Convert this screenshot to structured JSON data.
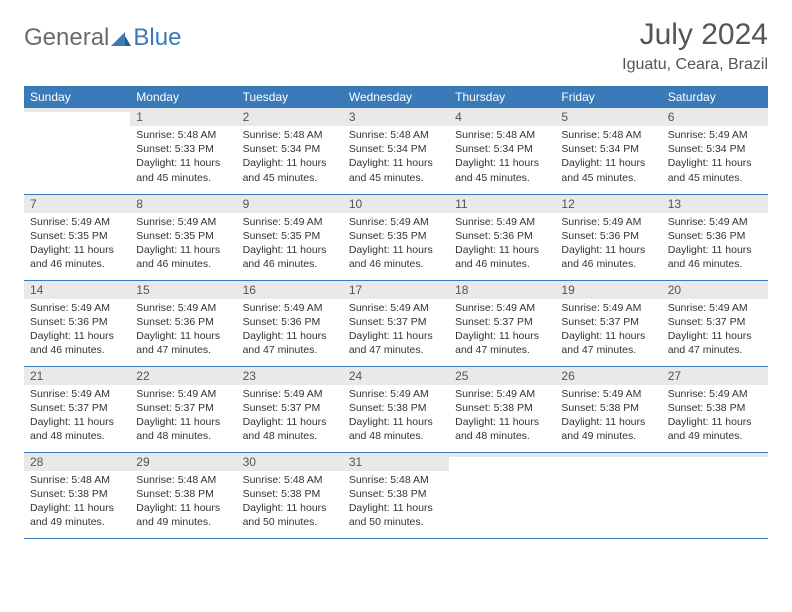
{
  "logo": {
    "general": "General",
    "blue": "Blue"
  },
  "header": {
    "month_title": "July 2024",
    "location": "Iguatu, Ceara, Brazil"
  },
  "colors": {
    "header_bg": "#3a7ab8",
    "header_text": "#ffffff",
    "daynum_bg": "#e9e9e9",
    "text": "#333333",
    "logo_gray": "#6b6b6b",
    "logo_blue": "#3a7ab8",
    "row_border": "#3a7ab8"
  },
  "day_headers": [
    "Sunday",
    "Monday",
    "Tuesday",
    "Wednesday",
    "Thursday",
    "Friday",
    "Saturday"
  ],
  "weeks": [
    [
      {
        "num": "",
        "sunrise": "",
        "sunset": "",
        "daylight": ""
      },
      {
        "num": "1",
        "sunrise": "Sunrise: 5:48 AM",
        "sunset": "Sunset: 5:33 PM",
        "daylight": "Daylight: 11 hours and 45 minutes."
      },
      {
        "num": "2",
        "sunrise": "Sunrise: 5:48 AM",
        "sunset": "Sunset: 5:34 PM",
        "daylight": "Daylight: 11 hours and 45 minutes."
      },
      {
        "num": "3",
        "sunrise": "Sunrise: 5:48 AM",
        "sunset": "Sunset: 5:34 PM",
        "daylight": "Daylight: 11 hours and 45 minutes."
      },
      {
        "num": "4",
        "sunrise": "Sunrise: 5:48 AM",
        "sunset": "Sunset: 5:34 PM",
        "daylight": "Daylight: 11 hours and 45 minutes."
      },
      {
        "num": "5",
        "sunrise": "Sunrise: 5:48 AM",
        "sunset": "Sunset: 5:34 PM",
        "daylight": "Daylight: 11 hours and 45 minutes."
      },
      {
        "num": "6",
        "sunrise": "Sunrise: 5:49 AM",
        "sunset": "Sunset: 5:34 PM",
        "daylight": "Daylight: 11 hours and 45 minutes."
      }
    ],
    [
      {
        "num": "7",
        "sunrise": "Sunrise: 5:49 AM",
        "sunset": "Sunset: 5:35 PM",
        "daylight": "Daylight: 11 hours and 46 minutes."
      },
      {
        "num": "8",
        "sunrise": "Sunrise: 5:49 AM",
        "sunset": "Sunset: 5:35 PM",
        "daylight": "Daylight: 11 hours and 46 minutes."
      },
      {
        "num": "9",
        "sunrise": "Sunrise: 5:49 AM",
        "sunset": "Sunset: 5:35 PM",
        "daylight": "Daylight: 11 hours and 46 minutes."
      },
      {
        "num": "10",
        "sunrise": "Sunrise: 5:49 AM",
        "sunset": "Sunset: 5:35 PM",
        "daylight": "Daylight: 11 hours and 46 minutes."
      },
      {
        "num": "11",
        "sunrise": "Sunrise: 5:49 AM",
        "sunset": "Sunset: 5:36 PM",
        "daylight": "Daylight: 11 hours and 46 minutes."
      },
      {
        "num": "12",
        "sunrise": "Sunrise: 5:49 AM",
        "sunset": "Sunset: 5:36 PM",
        "daylight": "Daylight: 11 hours and 46 minutes."
      },
      {
        "num": "13",
        "sunrise": "Sunrise: 5:49 AM",
        "sunset": "Sunset: 5:36 PM",
        "daylight": "Daylight: 11 hours and 46 minutes."
      }
    ],
    [
      {
        "num": "14",
        "sunrise": "Sunrise: 5:49 AM",
        "sunset": "Sunset: 5:36 PM",
        "daylight": "Daylight: 11 hours and 46 minutes."
      },
      {
        "num": "15",
        "sunrise": "Sunrise: 5:49 AM",
        "sunset": "Sunset: 5:36 PM",
        "daylight": "Daylight: 11 hours and 47 minutes."
      },
      {
        "num": "16",
        "sunrise": "Sunrise: 5:49 AM",
        "sunset": "Sunset: 5:36 PM",
        "daylight": "Daylight: 11 hours and 47 minutes."
      },
      {
        "num": "17",
        "sunrise": "Sunrise: 5:49 AM",
        "sunset": "Sunset: 5:37 PM",
        "daylight": "Daylight: 11 hours and 47 minutes."
      },
      {
        "num": "18",
        "sunrise": "Sunrise: 5:49 AM",
        "sunset": "Sunset: 5:37 PM",
        "daylight": "Daylight: 11 hours and 47 minutes."
      },
      {
        "num": "19",
        "sunrise": "Sunrise: 5:49 AM",
        "sunset": "Sunset: 5:37 PM",
        "daylight": "Daylight: 11 hours and 47 minutes."
      },
      {
        "num": "20",
        "sunrise": "Sunrise: 5:49 AM",
        "sunset": "Sunset: 5:37 PM",
        "daylight": "Daylight: 11 hours and 47 minutes."
      }
    ],
    [
      {
        "num": "21",
        "sunrise": "Sunrise: 5:49 AM",
        "sunset": "Sunset: 5:37 PM",
        "daylight": "Daylight: 11 hours and 48 minutes."
      },
      {
        "num": "22",
        "sunrise": "Sunrise: 5:49 AM",
        "sunset": "Sunset: 5:37 PM",
        "daylight": "Daylight: 11 hours and 48 minutes."
      },
      {
        "num": "23",
        "sunrise": "Sunrise: 5:49 AM",
        "sunset": "Sunset: 5:37 PM",
        "daylight": "Daylight: 11 hours and 48 minutes."
      },
      {
        "num": "24",
        "sunrise": "Sunrise: 5:49 AM",
        "sunset": "Sunset: 5:38 PM",
        "daylight": "Daylight: 11 hours and 48 minutes."
      },
      {
        "num": "25",
        "sunrise": "Sunrise: 5:49 AM",
        "sunset": "Sunset: 5:38 PM",
        "daylight": "Daylight: 11 hours and 48 minutes."
      },
      {
        "num": "26",
        "sunrise": "Sunrise: 5:49 AM",
        "sunset": "Sunset: 5:38 PM",
        "daylight": "Daylight: 11 hours and 49 minutes."
      },
      {
        "num": "27",
        "sunrise": "Sunrise: 5:49 AM",
        "sunset": "Sunset: 5:38 PM",
        "daylight": "Daylight: 11 hours and 49 minutes."
      }
    ],
    [
      {
        "num": "28",
        "sunrise": "Sunrise: 5:48 AM",
        "sunset": "Sunset: 5:38 PM",
        "daylight": "Daylight: 11 hours and 49 minutes."
      },
      {
        "num": "29",
        "sunrise": "Sunrise: 5:48 AM",
        "sunset": "Sunset: 5:38 PM",
        "daylight": "Daylight: 11 hours and 49 minutes."
      },
      {
        "num": "30",
        "sunrise": "Sunrise: 5:48 AM",
        "sunset": "Sunset: 5:38 PM",
        "daylight": "Daylight: 11 hours and 50 minutes."
      },
      {
        "num": "31",
        "sunrise": "Sunrise: 5:48 AM",
        "sunset": "Sunset: 5:38 PM",
        "daylight": "Daylight: 11 hours and 50 minutes."
      },
      {
        "num": "",
        "sunrise": "",
        "sunset": "",
        "daylight": ""
      },
      {
        "num": "",
        "sunrise": "",
        "sunset": "",
        "daylight": ""
      },
      {
        "num": "",
        "sunrise": "",
        "sunset": "",
        "daylight": ""
      }
    ]
  ]
}
